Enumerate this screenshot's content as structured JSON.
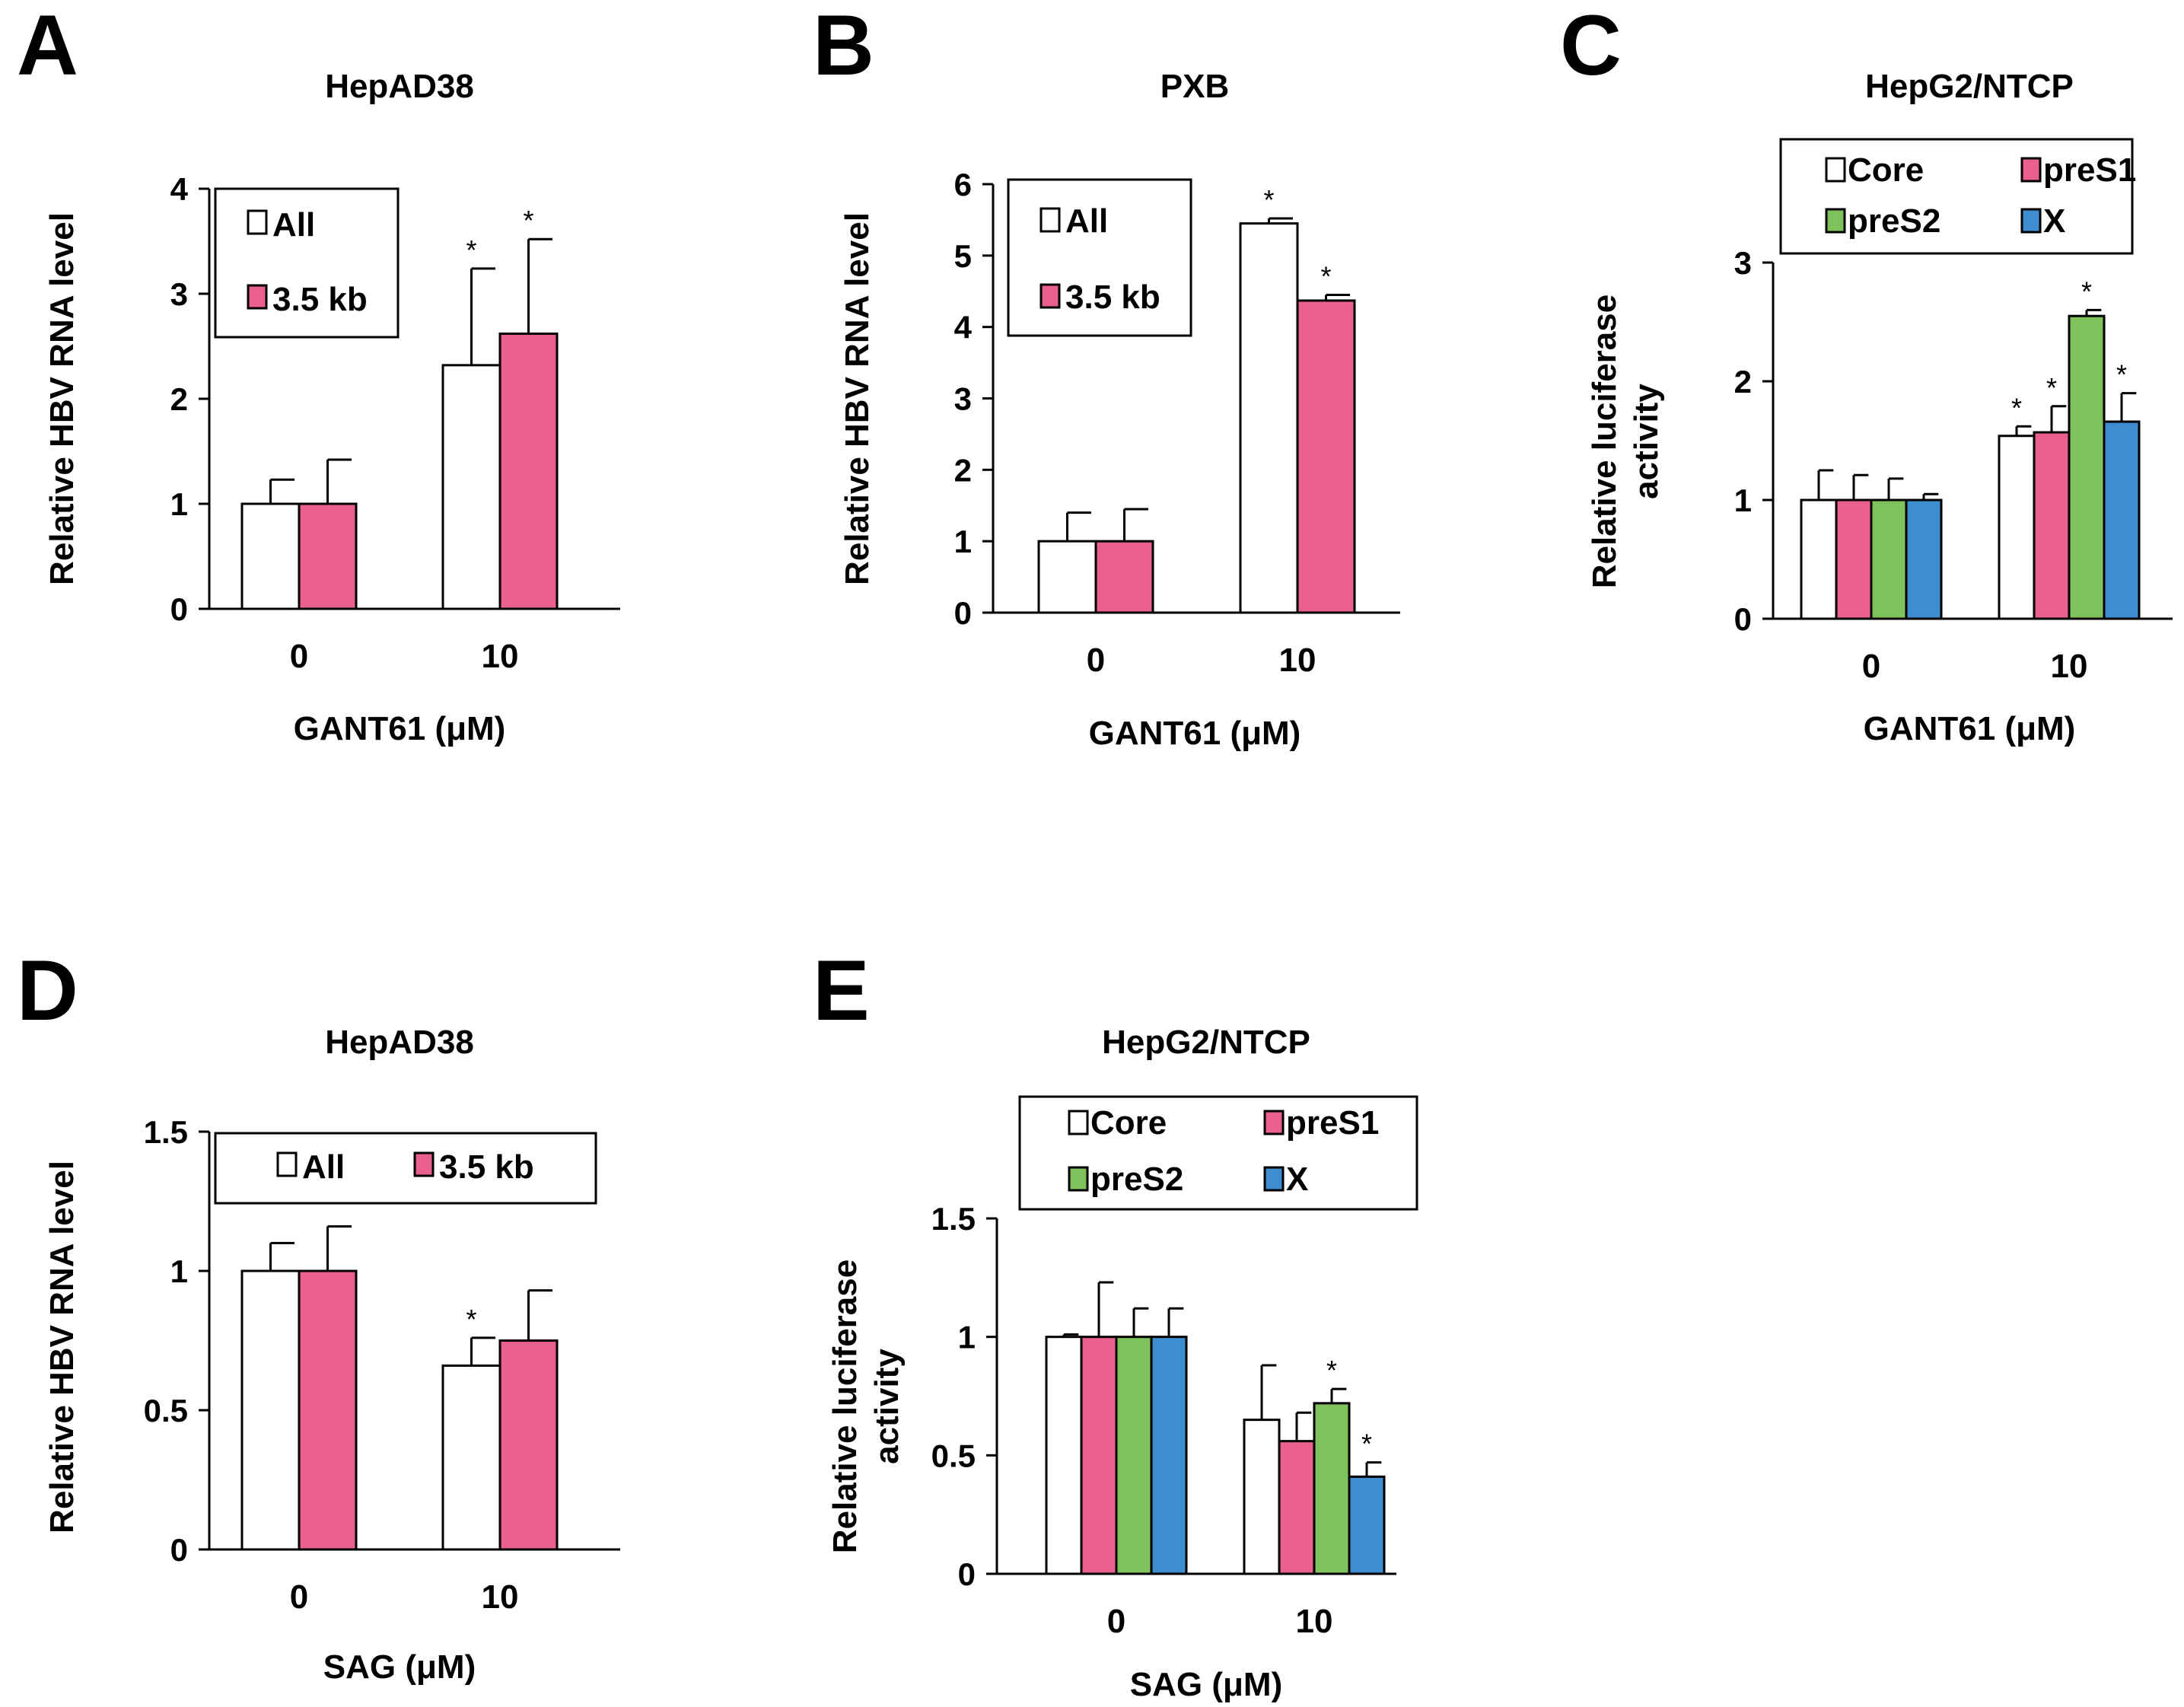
{
  "figure": {
    "panel_letters": [
      "A",
      "B",
      "C",
      "D",
      "E"
    ]
  },
  "colors": {
    "all": "#ffffff",
    "kb35": "#e95f8e",
    "core": "#ffffff",
    "preS1": "#e95f8e",
    "preS2": "#7dc25a",
    "X": "#3f8dd0",
    "axis": "#000000"
  },
  "chart_data": [
    {
      "panel": "A",
      "type": "bar",
      "title": "HepAD38",
      "xlabel": "GANT61 (μM)",
      "ylabel": "Relative HBV  RNA level",
      "categories": [
        "0",
        "10"
      ],
      "ylim": [
        0,
        4
      ],
      "yticks": [
        0,
        1,
        2,
        3,
        4
      ],
      "ytick_labels": [
        "0",
        "1",
        "2",
        "3",
        "4"
      ],
      "legend": {
        "position": "top-left",
        "layout": "column"
      },
      "series": [
        {
          "name": "All",
          "values": [
            1.0,
            2.32
          ],
          "errors": [
            0.23,
            0.92
          ],
          "significant": [
            false,
            true
          ],
          "color_key": "all"
        },
        {
          "name": "3.5 kb",
          "values": [
            1.0,
            2.62
          ],
          "errors": [
            0.42,
            0.9
          ],
          "significant": [
            false,
            true
          ],
          "color_key": "kb35"
        }
      ]
    },
    {
      "panel": "B",
      "type": "bar",
      "title": "PXB",
      "xlabel": "GANT61 (μM)",
      "ylabel": "Relative HBV  RNA level",
      "categories": [
        "0",
        "10"
      ],
      "ylim": [
        0,
        6
      ],
      "yticks": [
        0,
        1,
        2,
        3,
        4,
        5,
        6
      ],
      "ytick_labels": [
        "0",
        "1",
        "2",
        "3",
        "4",
        "5",
        "6"
      ],
      "legend": {
        "position": "top-left",
        "layout": "column"
      },
      "series": [
        {
          "name": "All",
          "values": [
            1.0,
            5.45
          ],
          "errors": [
            0.4,
            0.07
          ],
          "significant": [
            false,
            true
          ],
          "color_key": "all"
        },
        {
          "name": "3.5 kb",
          "values": [
            1.0,
            4.37
          ],
          "errors": [
            0.45,
            0.08
          ],
          "significant": [
            false,
            true
          ],
          "color_key": "kb35"
        }
      ]
    },
    {
      "panel": "C",
      "type": "bar",
      "title": "HepG2/NTCP",
      "xlabel": "GANT61 (μM)",
      "ylabel": "Relative luciferase activity",
      "categories": [
        "0",
        "10"
      ],
      "ylim": [
        0,
        3
      ],
      "yticks": [
        0,
        1,
        2,
        3
      ],
      "ytick_labels": [
        "0",
        "1",
        "2",
        "3"
      ],
      "legend": {
        "position": "above-plot",
        "layout": "grid"
      },
      "series": [
        {
          "name": "Core",
          "values": [
            1.0,
            1.54
          ],
          "errors": [
            0.25,
            0.08
          ],
          "significant": [
            false,
            true
          ],
          "color_key": "core"
        },
        {
          "name": "preS1",
          "values": [
            1.0,
            1.57
          ],
          "errors": [
            0.21,
            0.22
          ],
          "significant": [
            false,
            true
          ],
          "color_key": "preS1"
        },
        {
          "name": "preS2",
          "values": [
            1.0,
            2.55
          ],
          "errors": [
            0.18,
            0.05
          ],
          "significant": [
            false,
            true
          ],
          "color_key": "preS2"
        },
        {
          "name": "X",
          "values": [
            1.0,
            1.66
          ],
          "errors": [
            0.05,
            0.24
          ],
          "significant": [
            false,
            true
          ],
          "color_key": "X"
        }
      ]
    },
    {
      "panel": "D",
      "type": "bar",
      "title": "HepAD38",
      "xlabel": "SAG (μM)",
      "ylabel": "Relative HBV RNA  level",
      "categories": [
        "0",
        "10"
      ],
      "ylim": [
        0,
        1.5
      ],
      "yticks": [
        0,
        0.5,
        1,
        1.5
      ],
      "ytick_labels": [
        "0",
        "0.5",
        "1",
        "1.5"
      ],
      "legend": {
        "position": "top",
        "layout": "row"
      },
      "series": [
        {
          "name": "All",
          "values": [
            1.0,
            0.66
          ],
          "errors": [
            0.1,
            0.1
          ],
          "significant": [
            false,
            true
          ],
          "color_key": "all"
        },
        {
          "name": "3.5 kb",
          "values": [
            1.0,
            0.75
          ],
          "errors": [
            0.16,
            0.18
          ],
          "significant": [
            false,
            false
          ],
          "color_key": "kb35"
        }
      ]
    },
    {
      "panel": "E",
      "type": "bar",
      "title": "HepG2/NTCP",
      "xlabel": "SAG (μM)",
      "ylabel": "Relative luciferase activity",
      "categories": [
        "0",
        "10"
      ],
      "ylim": [
        0,
        1.5
      ],
      "yticks": [
        0,
        0.5,
        1,
        1.5
      ],
      "ytick_labels": [
        "0",
        "0.5",
        "1",
        "1.5"
      ],
      "legend": {
        "position": "above-plot",
        "layout": "grid"
      },
      "series": [
        {
          "name": "Core",
          "values": [
            1.0,
            0.65
          ],
          "errors": [
            0.01,
            0.23
          ],
          "significant": [
            false,
            false
          ],
          "color_key": "core"
        },
        {
          "name": "preS1",
          "values": [
            1.0,
            0.56
          ],
          "errors": [
            0.23,
            0.12
          ],
          "significant": [
            false,
            false
          ],
          "color_key": "preS1"
        },
        {
          "name": "preS2",
          "values": [
            1.0,
            0.72
          ],
          "errors": [
            0.12,
            0.06
          ],
          "significant": [
            false,
            true
          ],
          "color_key": "preS2"
        },
        {
          "name": "X",
          "values": [
            1.0,
            0.41
          ],
          "errors": [
            0.12,
            0.06
          ],
          "significant": [
            false,
            true
          ],
          "color_key": "X"
        }
      ]
    }
  ]
}
